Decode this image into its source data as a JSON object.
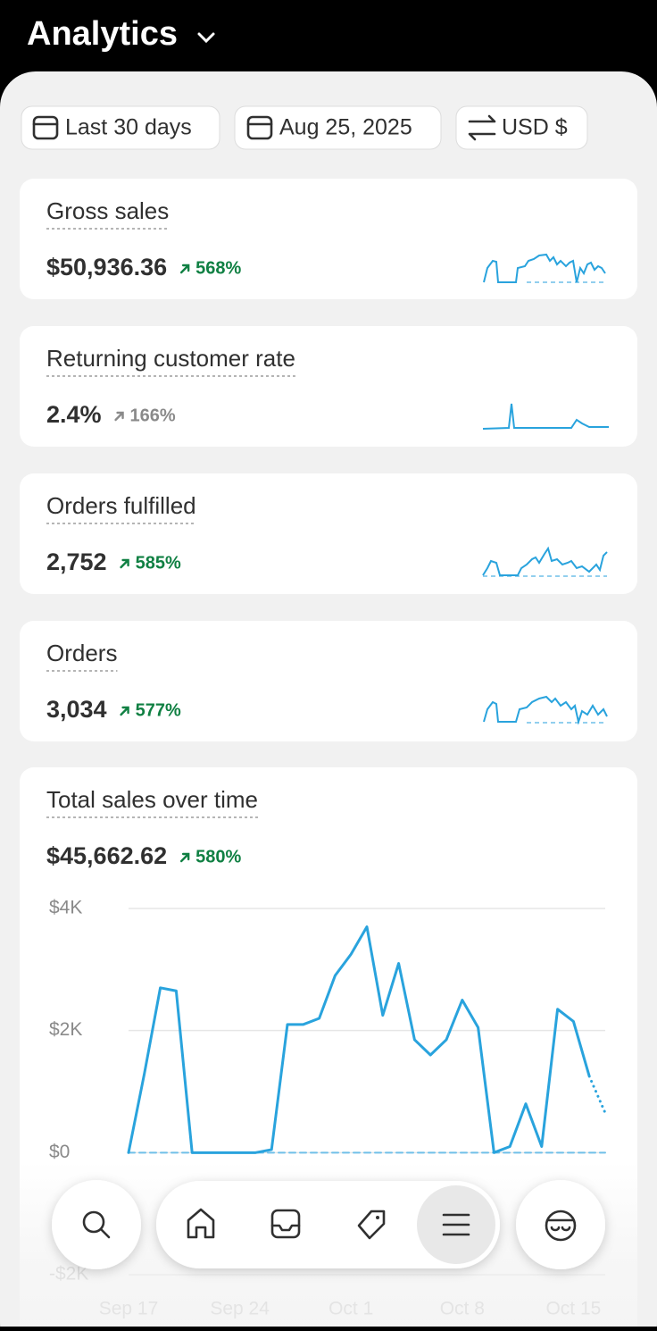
{
  "header": {
    "title": "Analytics"
  },
  "filters": [
    "Last 30 days",
    "Aug 25, 2025",
    "USD $"
  ],
  "cards": [
    {
      "title": "Gross sales",
      "value": "$50,936.36",
      "change": "568%",
      "change_color": "#108043"
    },
    {
      "title": "Returning customer rate",
      "value": "2.4%",
      "change": "166%",
      "change_color": "#8a8a8a"
    },
    {
      "title": "Orders fulfilled",
      "value": "2,752",
      "change": "585%",
      "change_color": "#108043"
    },
    {
      "title": "Orders",
      "value": "3,034",
      "change": "577%",
      "change_color": "#108043"
    }
  ],
  "sales_chart": {
    "type": "line",
    "title": "Total sales over time",
    "value": "$45,662.62",
    "change": "580%",
    "change_color": "#108043",
    "categories": [
      "Sep 17",
      null,
      null,
      null,
      null,
      null,
      null,
      "Sep 24",
      null,
      null,
      null,
      null,
      null,
      null,
      "Oct 1",
      null,
      null,
      null,
      null,
      null,
      null,
      "Oct 8",
      null,
      null,
      null,
      null,
      null,
      null,
      "Oct 15",
      null,
      null
    ],
    "series": [
      {
        "color": "#29a3dd",
        "values": [
          0,
          1300,
          2700,
          2650,
          0,
          0,
          0,
          0,
          0,
          50,
          2100,
          2100,
          2200,
          2900,
          3250,
          3700,
          2250,
          3100,
          1850,
          1600,
          1850,
          2500,
          2050,
          0,
          100,
          800,
          100,
          2350,
          2150,
          1250,
          650
        ]
      },
      {
        "color": "#6fbfe8",
        "dashed": true,
        "values": [
          0,
          0,
          0,
          0,
          0,
          0,
          0,
          0,
          0,
          0,
          0,
          0,
          0,
          0,
          0,
          0,
          0,
          0,
          0,
          0,
          0,
          0,
          0,
          0,
          0,
          0,
          0,
          0,
          0,
          0,
          0
        ]
      }
    ],
    "ylim": [
      -2000,
      4000
    ],
    "yticks": [
      {
        "value": 4000,
        "label": "$4K"
      },
      {
        "value": 2000,
        "label": "$2K"
      },
      {
        "value": 0,
        "label": "$0"
      },
      {
        "value": -2000,
        "label": "-$2K"
      }
    ],
    "grid": true
  }
}
